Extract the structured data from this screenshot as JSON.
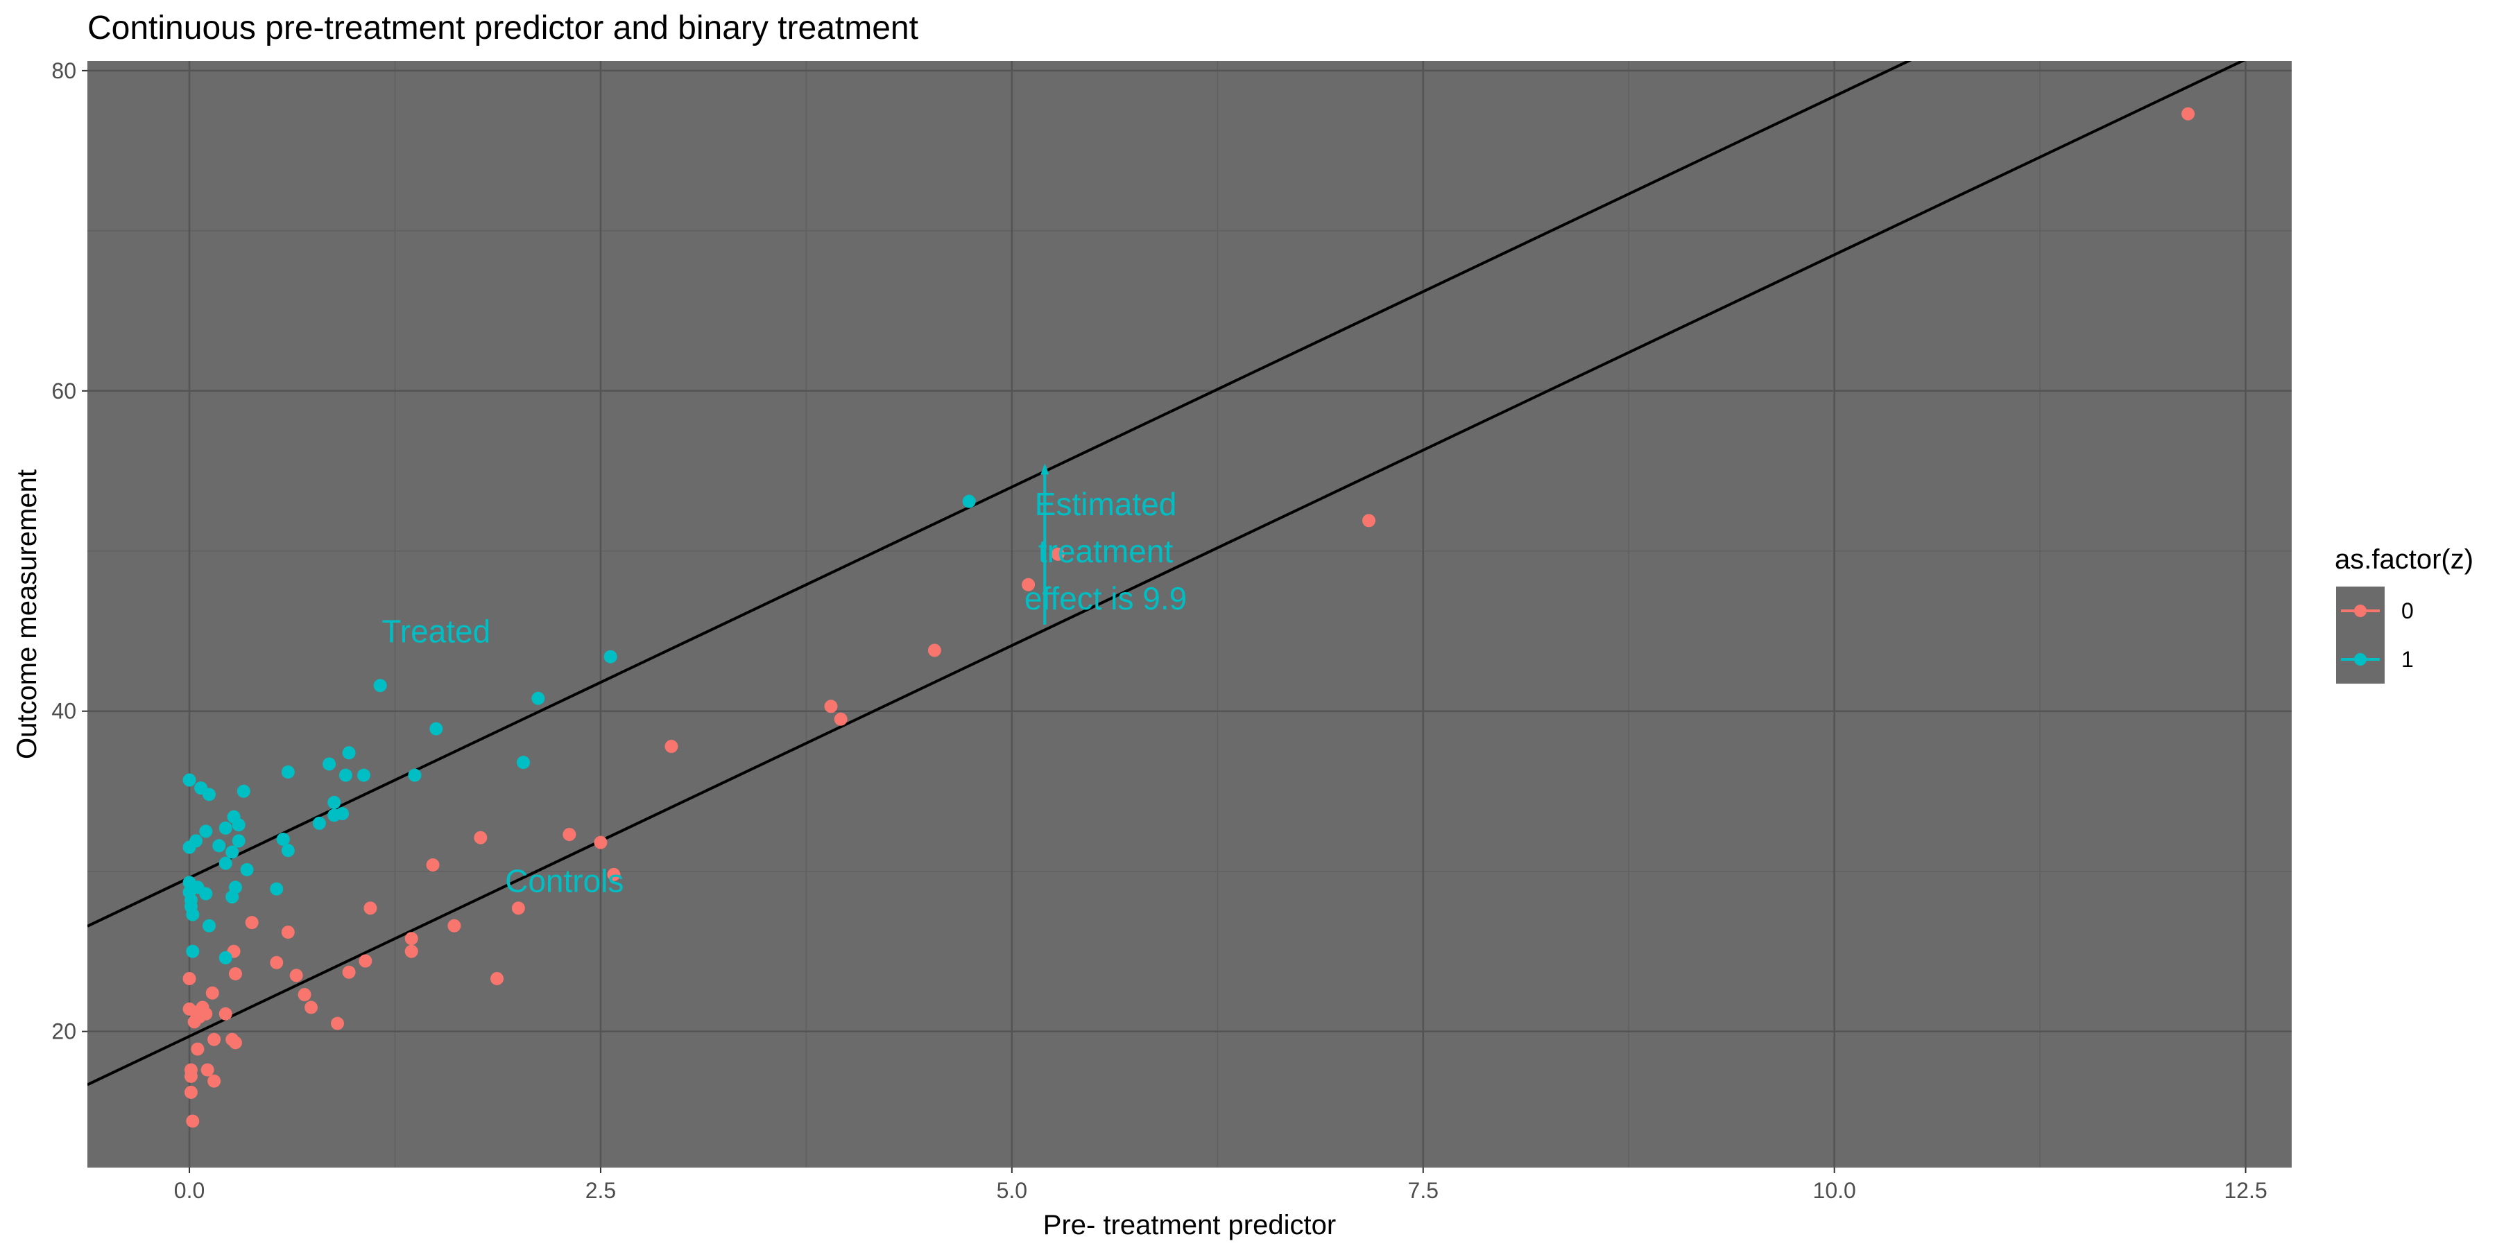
{
  "chart_data": {
    "type": "scatter",
    "title": "Continuous pre-treatment predictor and binary treatment",
    "xlabel": "Pre- treatment predictor",
    "ylabel": "Outcome measurement",
    "xlim": [
      -0.62,
      12.78
    ],
    "ylim": [
      11.5,
      80.6
    ],
    "x_ticks": [
      0.0,
      2.5,
      5.0,
      7.5,
      10.0,
      12.5
    ],
    "x_tick_labels": [
      "0.0",
      "2.5",
      "5.0",
      "7.5",
      "10.0",
      "12.5"
    ],
    "y_ticks": [
      20,
      40,
      60,
      80
    ],
    "y_tick_labels": [
      "20",
      "40",
      "60",
      "80"
    ],
    "grid": true,
    "panel_background": "#6b6b6b",
    "legend": {
      "title": "as.factor(z)",
      "placement": "right",
      "entries": [
        {
          "label": "0",
          "color": "#F8766D"
        },
        {
          "label": "1",
          "color": "#00BFC4"
        }
      ]
    },
    "series": [
      {
        "name": "0",
        "color": "#F8766D",
        "points": [
          [
            0.0,
            23.3
          ],
          [
            0.0,
            21.4
          ],
          [
            0.01,
            17.6
          ],
          [
            0.01,
            17.2
          ],
          [
            0.01,
            16.2
          ],
          [
            0.02,
            14.4
          ],
          [
            0.03,
            20.6
          ],
          [
            0.04,
            21.2
          ],
          [
            0.05,
            18.9
          ],
          [
            0.06,
            20.9
          ],
          [
            0.08,
            21.5
          ],
          [
            0.1,
            21.1
          ],
          [
            0.11,
            17.6
          ],
          [
            0.14,
            22.4
          ],
          [
            0.15,
            16.9
          ],
          [
            0.15,
            19.5
          ],
          [
            0.22,
            21.1
          ],
          [
            0.26,
            19.5
          ],
          [
            0.27,
            25.0
          ],
          [
            0.28,
            23.6
          ],
          [
            0.28,
            19.3
          ],
          [
            0.38,
            26.8
          ],
          [
            0.53,
            24.3
          ],
          [
            0.6,
            26.2
          ],
          [
            0.65,
            23.5
          ],
          [
            0.7,
            22.3
          ],
          [
            0.74,
            21.5
          ],
          [
            0.9,
            20.5
          ],
          [
            0.97,
            23.7
          ],
          [
            1.07,
            24.4
          ],
          [
            1.1,
            27.7
          ],
          [
            1.35,
            25.8
          ],
          [
            1.35,
            25.0
          ],
          [
            1.48,
            30.4
          ],
          [
            1.61,
            26.6
          ],
          [
            1.77,
            32.1
          ],
          [
            1.87,
            23.3
          ],
          [
            2.0,
            27.7
          ],
          [
            2.31,
            32.3
          ],
          [
            2.5,
            31.8
          ],
          [
            2.58,
            29.8
          ],
          [
            2.93,
            37.8
          ],
          [
            3.9,
            40.3
          ],
          [
            3.96,
            39.5
          ],
          [
            4.53,
            43.8
          ],
          [
            5.1,
            47.9
          ],
          [
            5.28,
            49.8
          ],
          [
            7.17,
            51.9
          ],
          [
            12.15,
            77.3
          ]
        ]
      },
      {
        "name": "1",
        "color": "#00BFC4",
        "points": [
          [
            0.0,
            35.7
          ],
          [
            0.0,
            31.5
          ],
          [
            0.0,
            29.3
          ],
          [
            0.0,
            28.7
          ],
          [
            0.01,
            28.2
          ],
          [
            0.01,
            27.8
          ],
          [
            0.02,
            27.3
          ],
          [
            0.02,
            25.0
          ],
          [
            0.04,
            31.9
          ],
          [
            0.05,
            29.0
          ],
          [
            0.07,
            35.2
          ],
          [
            0.1,
            32.5
          ],
          [
            0.1,
            28.6
          ],
          [
            0.12,
            34.8
          ],
          [
            0.12,
            26.6
          ],
          [
            0.18,
            31.6
          ],
          [
            0.22,
            32.7
          ],
          [
            0.22,
            30.5
          ],
          [
            0.22,
            24.6
          ],
          [
            0.26,
            31.2
          ],
          [
            0.26,
            28.4
          ],
          [
            0.27,
            33.4
          ],
          [
            0.28,
            29.0
          ],
          [
            0.3,
            32.9
          ],
          [
            0.3,
            31.9
          ],
          [
            0.33,
            35.0
          ],
          [
            0.35,
            30.1
          ],
          [
            0.53,
            28.9
          ],
          [
            0.57,
            32.0
          ],
          [
            0.6,
            31.3
          ],
          [
            0.6,
            36.2
          ],
          [
            0.79,
            33.0
          ],
          [
            0.85,
            36.7
          ],
          [
            0.88,
            34.3
          ],
          [
            0.88,
            33.5
          ],
          [
            0.93,
            33.6
          ],
          [
            0.95,
            36.0
          ],
          [
            0.97,
            37.4
          ],
          [
            1.06,
            36.0
          ],
          [
            1.16,
            41.6
          ],
          [
            1.37,
            36.0
          ],
          [
            1.5,
            38.9
          ],
          [
            2.03,
            36.8
          ],
          [
            2.12,
            40.8
          ],
          [
            2.56,
            43.4
          ],
          [
            4.74,
            53.1
          ]
        ]
      }
    ],
    "lines": [
      {
        "name": "treated-fit",
        "intercept": 29.6,
        "slope": 4.88
      },
      {
        "name": "control-fit",
        "intercept": 19.7,
        "slope": 4.88
      }
    ],
    "annotations": [
      {
        "text": "Treated",
        "x": 1.5,
        "y": 45.0
      },
      {
        "text": "Controls",
        "x": 2.28,
        "y": 29.4
      },
      {
        "text": "Estimated\ntreatment\neffect is 9.9",
        "x": 5.57,
        "y": 50.0
      }
    ],
    "effect_segment": {
      "x": 5.2,
      "y_from": 45.4,
      "y_to": 55.3,
      "value": 9.9
    },
    "annotation_color": "#00BFC4"
  }
}
